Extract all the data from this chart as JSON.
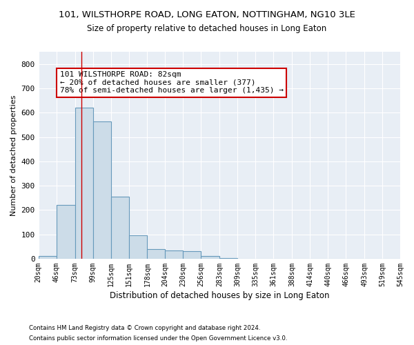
{
  "title": "101, WILSTHORPE ROAD, LONG EATON, NOTTINGHAM, NG10 3LE",
  "subtitle": "Size of property relative to detached houses in Long Eaton",
  "xlabel": "Distribution of detached houses by size in Long Eaton",
  "ylabel": "Number of detached properties",
  "bar_color": "#ccdce8",
  "bar_edge_color": "#6699bb",
  "background_color": "#ffffff",
  "plot_bg_color": "#e8eef5",
  "grid_color": "#ffffff",
  "annotation_box_color": "#cc0000",
  "property_line_color": "#cc0000",
  "property_value": 82,
  "annotation_text": "101 WILSTHORPE ROAD: 82sqm\n← 20% of detached houses are smaller (377)\n78% of semi-detached houses are larger (1,435) →",
  "footnote1": "Contains HM Land Registry data © Crown copyright and database right 2024.",
  "footnote2": "Contains public sector information licensed under the Open Government Licence v3.0.",
  "bins": [
    20,
    46,
    73,
    99,
    125,
    151,
    178,
    204,
    230,
    256,
    283,
    309,
    335,
    361,
    388,
    414,
    440,
    466,
    493,
    519,
    545
  ],
  "counts": [
    10,
    220,
    620,
    565,
    255,
    95,
    40,
    35,
    30,
    10,
    3,
    0,
    0,
    0,
    0,
    0,
    0,
    0,
    0,
    0
  ],
  "ylim": [
    0,
    850
  ],
  "yticks": [
    0,
    100,
    200,
    300,
    400,
    500,
    600,
    700,
    800
  ]
}
